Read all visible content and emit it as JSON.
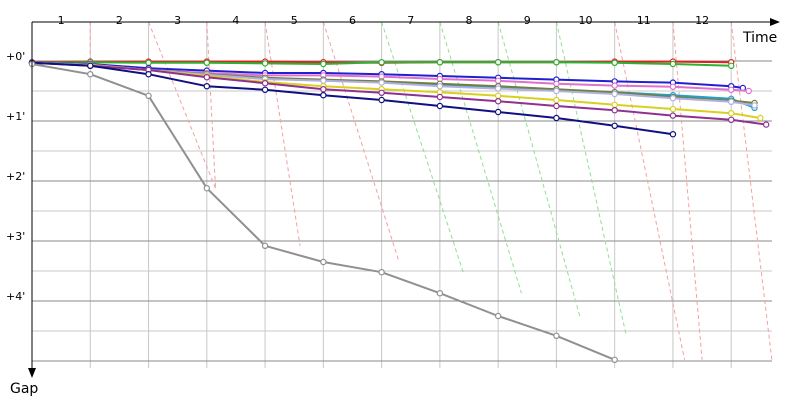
{
  "chart_data": {
    "type": "line",
    "xlabel": "Time",
    "ylabel": "Gap",
    "x_ticks": [
      "1",
      "2",
      "3",
      "4",
      "5",
      "6",
      "7",
      "8",
      "9",
      "10",
      "11",
      "12"
    ],
    "y_ticks": [
      "+0'",
      "+1'",
      "+2'",
      "+3'",
      "+4'"
    ],
    "x_range": [
      0,
      12.7
    ],
    "y_range_minutes": [
      0,
      5.3
    ],
    "grid": true,
    "legend": "none",
    "colors": {
      "axis": "#000000",
      "grid": "#c8c8c8",
      "pit_red": "#f4a0a0",
      "pit_green": "#8fe08f"
    },
    "series": [
      {
        "color": "#e02020",
        "points": [
          [
            0,
            0.02
          ],
          [
            1,
            0.01
          ],
          [
            2,
            0.01
          ],
          [
            3,
            0.01
          ],
          [
            4,
            0.01
          ],
          [
            5,
            0.02
          ],
          [
            6,
            0.03
          ],
          [
            7,
            0.02
          ],
          [
            8,
            0.02
          ],
          [
            9,
            0.02
          ],
          [
            10,
            0.01
          ],
          [
            11,
            0.01
          ],
          [
            12,
            0.02
          ]
        ]
      },
      {
        "color": "#30b030",
        "points": [
          [
            0,
            0.03
          ],
          [
            1,
            0.02
          ],
          [
            2,
            0.03
          ],
          [
            3,
            0.03
          ],
          [
            4,
            0.04
          ],
          [
            5,
            0.05
          ],
          [
            6,
            0.02
          ],
          [
            7,
            0.02
          ],
          [
            8,
            0.02
          ],
          [
            9,
            0.02
          ],
          [
            10,
            0.03
          ],
          [
            11,
            0.05
          ],
          [
            12,
            0.08
          ]
        ]
      },
      {
        "color": "#2020d0",
        "points": [
          [
            0,
            0.03
          ],
          [
            1,
            0.05
          ],
          [
            2,
            0.12
          ],
          [
            3,
            0.16
          ],
          [
            4,
            0.2
          ],
          [
            5,
            0.2
          ],
          [
            6,
            0.22
          ],
          [
            7,
            0.25
          ],
          [
            8,
            0.28
          ],
          [
            9,
            0.31
          ],
          [
            10,
            0.34
          ],
          [
            11,
            0.36
          ],
          [
            12,
            0.42
          ],
          [
            12.2,
            0.45
          ]
        ]
      },
      {
        "color": "#e070d0",
        "points": [
          [
            0,
            0.03
          ],
          [
            1,
            0.06
          ],
          [
            2,
            0.15
          ],
          [
            3,
            0.2
          ],
          [
            4,
            0.24
          ],
          [
            5,
            0.24
          ],
          [
            6,
            0.26
          ],
          [
            7,
            0.3
          ],
          [
            8,
            0.33
          ],
          [
            9,
            0.38
          ],
          [
            10,
            0.41
          ],
          [
            11,
            0.43
          ],
          [
            12,
            0.48
          ],
          [
            12.3,
            0.5
          ]
        ]
      },
      {
        "color": "#20a0d0",
        "points": [
          [
            0,
            0.03
          ],
          [
            1,
            0.07
          ],
          [
            2,
            0.15
          ],
          [
            3,
            0.22
          ],
          [
            4,
            0.3
          ],
          [
            5,
            0.32
          ],
          [
            6,
            0.35
          ],
          [
            7,
            0.4
          ],
          [
            8,
            0.44
          ],
          [
            9,
            0.48
          ],
          [
            10,
            0.52
          ],
          [
            11,
            0.57
          ],
          [
            12,
            0.63
          ],
          [
            12.4,
            0.78
          ]
        ]
      },
      {
        "color": "#708040",
        "points": [
          [
            0,
            0.03
          ],
          [
            1,
            0.07
          ],
          [
            2,
            0.15
          ],
          [
            3,
            0.22
          ],
          [
            4,
            0.28
          ],
          [
            5,
            0.31
          ],
          [
            6,
            0.34
          ],
          [
            7,
            0.38
          ],
          [
            8,
            0.42
          ],
          [
            9,
            0.47
          ],
          [
            10,
            0.52
          ],
          [
            11,
            0.6
          ],
          [
            12,
            0.66
          ],
          [
            12.4,
            0.7
          ]
        ]
      },
      {
        "color": "#b0b0e0",
        "points": [
          [
            0,
            0.03
          ],
          [
            1,
            0.07
          ],
          [
            2,
            0.15
          ],
          [
            3,
            0.23
          ],
          [
            4,
            0.3
          ],
          [
            5,
            0.33
          ],
          [
            6,
            0.36
          ],
          [
            7,
            0.42
          ],
          [
            8,
            0.46
          ],
          [
            9,
            0.5
          ],
          [
            10,
            0.55
          ],
          [
            11,
            0.62
          ],
          [
            12,
            0.68
          ],
          [
            12.4,
            0.74
          ]
        ]
      },
      {
        "color": "#d8d020",
        "points": [
          [
            0,
            0.03
          ],
          [
            1,
            0.07
          ],
          [
            2,
            0.15
          ],
          [
            3,
            0.25
          ],
          [
            4,
            0.35
          ],
          [
            5,
            0.42
          ],
          [
            6,
            0.47
          ],
          [
            7,
            0.52
          ],
          [
            8,
            0.58
          ],
          [
            9,
            0.65
          ],
          [
            10,
            0.73
          ],
          [
            11,
            0.8
          ],
          [
            12,
            0.87
          ],
          [
            12.5,
            0.95
          ]
        ]
      },
      {
        "color": "#903090",
        "points": [
          [
            0,
            0.03
          ],
          [
            1,
            0.08
          ],
          [
            2,
            0.15
          ],
          [
            3,
            0.27
          ],
          [
            4,
            0.37
          ],
          [
            5,
            0.47
          ],
          [
            6,
            0.53
          ],
          [
            7,
            0.6
          ],
          [
            8,
            0.67
          ],
          [
            9,
            0.75
          ],
          [
            10,
            0.82
          ],
          [
            11,
            0.91
          ],
          [
            12,
            0.98
          ],
          [
            12.6,
            1.06
          ]
        ]
      },
      {
        "color": "#101080",
        "points": [
          [
            0,
            0.03
          ],
          [
            1,
            0.08
          ],
          [
            2,
            0.22
          ],
          [
            3,
            0.42
          ],
          [
            4,
            0.48
          ],
          [
            5,
            0.57
          ],
          [
            6,
            0.65
          ],
          [
            7,
            0.75
          ],
          [
            8,
            0.85
          ],
          [
            9,
            0.95
          ],
          [
            10,
            1.08
          ],
          [
            11,
            1.22
          ]
        ]
      },
      {
        "color": "#909090",
        "points": [
          [
            0,
            0.05
          ],
          [
            1,
            0.22
          ],
          [
            2,
            0.58
          ],
          [
            3,
            2.12
          ],
          [
            4,
            3.08
          ],
          [
            5,
            3.35
          ],
          [
            6,
            3.52
          ],
          [
            7,
            3.87
          ],
          [
            8,
            4.25
          ],
          [
            9,
            4.58
          ],
          [
            10,
            4.98
          ]
        ]
      }
    ],
    "pit_lines": [
      {
        "color": "pit_red",
        "x0": 1.0,
        "x1": 1.0,
        "y1": 0.22
      },
      {
        "color": "pit_red",
        "x0": 2.0,
        "x1": 3.15,
        "y1": 2.12
      },
      {
        "color": "pit_red",
        "x0": 3.0,
        "x1": 3.15,
        "y1": 2.12
      },
      {
        "color": "pit_red",
        "x0": 4.0,
        "x1": 4.6,
        "y1": 3.08
      },
      {
        "color": "pit_red",
        "x0": 5.0,
        "x1": 6.3,
        "y1": 3.35
      },
      {
        "color": "pit_green",
        "x0": 6.0,
        "x1": 7.4,
        "y1": 3.52
      },
      {
        "color": "pit_green",
        "x0": 7.0,
        "x1": 8.4,
        "y1": 3.87
      },
      {
        "color": "pit_green",
        "x0": 8.0,
        "x1": 9.4,
        "y1": 4.25
      },
      {
        "color": "pit_green",
        "x0": 9.0,
        "x1": 10.2,
        "y1": 4.58
      },
      {
        "color": "pit_red",
        "x0": 10.0,
        "x1": 11.2,
        "y1": 4.98
      },
      {
        "color": "pit_red",
        "x0": 11.0,
        "x1": 11.5,
        "y1": 4.98
      },
      {
        "color": "pit_red",
        "x0": 12.0,
        "x1": 12.7,
        "y1": 5.0
      }
    ]
  }
}
